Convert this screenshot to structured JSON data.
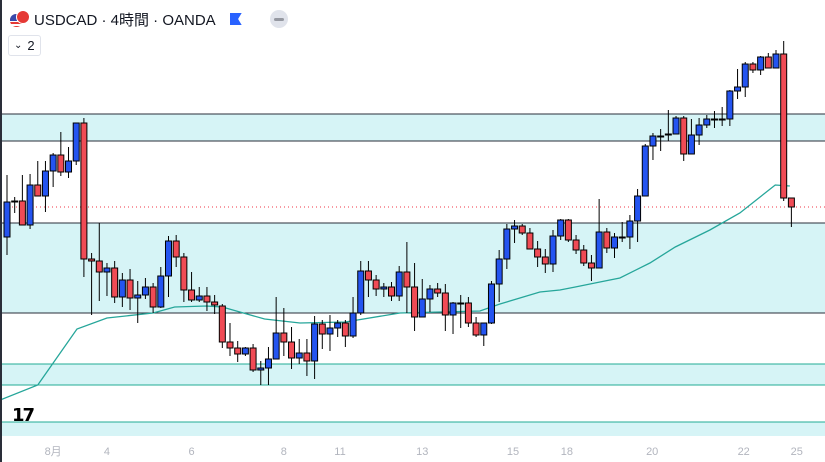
{
  "header": {
    "symbol_title": "USDCAD · 4時間 · OANDA",
    "indicator_count": "2"
  },
  "colors": {
    "up": "#2454f0",
    "down": "#f04b55",
    "ma": "#26a69a",
    "band_fill": "#d6f4f6",
    "band_line_dark": "#2a2e39",
    "band_line_teal": "#22ab94",
    "price_line": "#f23645"
  },
  "chart_data": {
    "type": "candlestick",
    "title": "USDCAD · 4時間 · OANDA",
    "value_units": "relative price (no price scale shown)",
    "current_price": 293,
    "candles": [
      [
        263,
        325,
        245,
        298
      ],
      [
        299,
        303,
        287,
        299
      ],
      [
        299,
        325,
        275,
        275
      ],
      [
        275,
        326,
        271,
        315
      ],
      [
        315,
        339,
        304,
        304
      ],
      [
        304,
        339,
        288,
        329
      ],
      [
        329,
        347,
        313,
        345
      ],
      [
        345,
        368,
        324,
        328
      ],
      [
        328,
        353,
        322,
        339
      ],
      [
        339,
        377,
        335,
        377
      ],
      [
        377,
        382,
        223,
        241
      ],
      [
        241,
        247,
        185,
        239
      ],
      [
        239,
        277,
        199,
        228
      ],
      [
        228,
        237,
        204,
        232
      ],
      [
        232,
        239,
        197,
        203
      ],
      [
        203,
        227,
        193,
        220
      ],
      [
        220,
        231,
        190,
        202
      ],
      [
        202,
        219,
        177,
        205
      ],
      [
        205,
        222,
        201,
        213
      ],
      [
        213,
        217,
        187,
        193
      ],
      [
        193,
        233,
        192,
        224
      ],
      [
        224,
        264,
        203,
        259
      ],
      [
        259,
        265,
        233,
        243
      ],
      [
        243,
        247,
        198,
        210
      ],
      [
        210,
        228,
        198,
        200
      ],
      [
        200,
        213,
        198,
        204
      ],
      [
        204,
        213,
        189,
        198
      ],
      [
        198,
        205,
        186,
        195
      ],
      [
        194,
        196,
        152,
        158
      ],
      [
        158,
        177,
        144,
        152
      ],
      [
        152,
        159,
        138,
        146
      ],
      [
        146,
        153,
        144,
        152
      ],
      [
        152,
        156,
        128,
        130
      ],
      [
        130,
        139,
        115,
        132
      ],
      [
        132,
        153,
        115,
        141
      ],
      [
        141,
        203,
        141,
        167
      ],
      [
        167,
        192,
        144,
        158
      ],
      [
        158,
        173,
        131,
        142
      ],
      [
        142,
        161,
        136,
        147
      ],
      [
        147,
        161,
        124,
        139
      ],
      [
        139,
        184,
        121,
        176
      ],
      [
        176,
        180,
        151,
        166
      ],
      [
        166,
        185,
        149,
        172
      ],
      [
        172,
        180,
        163,
        177
      ],
      [
        177,
        180,
        153,
        164
      ],
      [
        164,
        203,
        162,
        187
      ],
      [
        187,
        239,
        185,
        229
      ],
      [
        229,
        239,
        203,
        220
      ],
      [
        220,
        225,
        204,
        211
      ],
      [
        211,
        217,
        203,
        213
      ],
      [
        213,
        218,
        199,
        204
      ],
      [
        204,
        234,
        199,
        228
      ],
      [
        228,
        258,
        187,
        213
      ],
      [
        213,
        237,
        169,
        183
      ],
      [
        183,
        221,
        183,
        201
      ],
      [
        201,
        215,
        188,
        211
      ],
      [
        211,
        217,
        203,
        207
      ],
      [
        207,
        216,
        169,
        185
      ],
      [
        185,
        198,
        166,
        197
      ],
      [
        197,
        205,
        172,
        197
      ],
      [
        197,
        203,
        173,
        177
      ],
      [
        177,
        183,
        163,
        165
      ],
      [
        165,
        177,
        154,
        177
      ],
      [
        177,
        219,
        176,
        216
      ],
      [
        216,
        250,
        198,
        241
      ],
      [
        241,
        276,
        231,
        271
      ],
      [
        271,
        280,
        257,
        274
      ],
      [
        274,
        276,
        265,
        267
      ],
      [
        267,
        272,
        251,
        251
      ],
      [
        251,
        259,
        233,
        243
      ],
      [
        243,
        251,
        227,
        236
      ],
      [
        236,
        270,
        228,
        264
      ],
      [
        264,
        281,
        260,
        280
      ],
      [
        280,
        281,
        258,
        260
      ],
      [
        260,
        265,
        246,
        250
      ],
      [
        250,
        255,
        234,
        237
      ],
      [
        237,
        245,
        219,
        232
      ],
      [
        232,
        301,
        232,
        268
      ],
      [
        268,
        272,
        247,
        252
      ],
      [
        252,
        267,
        242,
        263
      ],
      [
        263,
        278,
        258,
        263
      ],
      [
        263,
        285,
        251,
        279
      ],
      [
        279,
        311,
        258,
        304
      ],
      [
        304,
        356,
        304,
        354
      ],
      [
        354,
        367,
        340,
        364
      ],
      [
        364,
        371,
        349,
        364
      ],
      [
        366,
        390,
        359,
        366
      ],
      [
        366,
        384,
        366,
        382
      ],
      [
        382,
        384,
        339,
        346
      ],
      [
        346,
        381,
        346,
        365
      ],
      [
        365,
        382,
        355,
        375
      ],
      [
        375,
        385,
        372,
        381
      ],
      [
        381,
        389,
        372,
        381
      ],
      [
        381,
        393,
        374,
        381
      ],
      [
        381,
        410,
        374,
        409
      ],
      [
        409,
        431,
        401,
        413
      ],
      [
        413,
        438,
        403,
        436
      ],
      [
        436,
        438,
        427,
        430
      ],
      [
        430,
        444,
        425,
        443
      ],
      [
        443,
        447,
        432,
        432
      ],
      [
        432,
        450,
        432,
        446
      ],
      [
        446,
        459,
        299,
        302
      ],
      [
        302,
        302,
        273,
        293
      ]
    ],
    "moving_average": [
      [
        -0.9,
        100
      ],
      [
        4,
        115
      ],
      [
        9.1,
        171
      ],
      [
        13,
        182
      ],
      [
        19,
        187
      ],
      [
        21.8,
        193
      ],
      [
        25.9,
        194
      ],
      [
        28,
        193
      ],
      [
        33.5,
        181
      ],
      [
        38.1,
        177
      ],
      [
        44,
        178
      ],
      [
        51.1,
        187
      ],
      [
        56.3,
        188
      ],
      [
        61.5,
        189
      ],
      [
        64.1,
        196
      ],
      [
        69.3,
        208
      ],
      [
        71.9,
        210
      ],
      [
        73.9,
        213
      ],
      [
        77.1,
        218
      ],
      [
        79.7,
        222
      ],
      [
        83.6,
        237
      ],
      [
        86.9,
        253
      ],
      [
        91.4,
        270
      ],
      [
        95.3,
        287
      ],
      [
        99.9,
        315
      ],
      [
        101.8,
        314
      ]
    ],
    "zones": [
      {
        "top": 386,
        "bottom": 359,
        "line": "dark"
      },
      {
        "top": 277,
        "bottom": 187,
        "line": "dark"
      },
      {
        "top": 136,
        "bottom": 115,
        "line": "teal"
      },
      {
        "top": 78,
        "bottom": 60,
        "line": "teal-top"
      }
    ],
    "x_ticks": [
      {
        "label": "8月",
        "at": 6
      },
      {
        "label": "4",
        "at": 13
      },
      {
        "label": "6",
        "at": 24
      },
      {
        "label": "8",
        "at": 36
      },
      {
        "label": "11",
        "at": 43.3
      },
      {
        "label": "13",
        "at": 54
      },
      {
        "label": "15",
        "at": 65.8
      },
      {
        "label": "18",
        "at": 72.8
      },
      {
        "label": "20",
        "at": 83.9
      },
      {
        "label": "22",
        "at": 95.8
      },
      {
        "label": "25",
        "at": 102.7
      }
    ]
  }
}
